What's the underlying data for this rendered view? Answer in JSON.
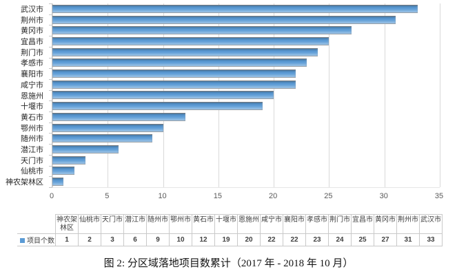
{
  "figure": {
    "caption": "图 2: 分区域落地项目数累计（2017 年 - 2018 年 10 月）"
  },
  "chart_data": {
    "type": "bar",
    "orientation": "horizontal",
    "title": "",
    "xlabel": "",
    "ylabel": "",
    "categories": [
      "武汉市",
      "荆州市",
      "黄冈市",
      "宜昌市",
      "荆门市",
      "孝感市",
      "襄阳市",
      "咸宁市",
      "恩施州",
      "十堰市",
      "黄石市",
      "鄂州市",
      "随州市",
      "潜江市",
      "天门市",
      "仙桃市",
      "神农架林区"
    ],
    "values": [
      33,
      31,
      27,
      25,
      24,
      23,
      22,
      22,
      20,
      19,
      12,
      10,
      9,
      6,
      3,
      2,
      1
    ],
    "series_name": "项目个数",
    "xlim": [
      0,
      35
    ],
    "xticks": [
      0,
      5,
      10,
      15,
      20,
      25,
      30,
      35
    ],
    "grid": true,
    "legend_position": "table-left",
    "bar_color": "#5b9bd5",
    "grid_color": "#d9d9d9",
    "axis_color": "#c6c6c6"
  },
  "table": {
    "legend_label": "项目个数",
    "columns": [
      "神农架林区",
      "仙桃市",
      "天门市",
      "潜江市",
      "随州市",
      "鄂州市",
      "黄石市",
      "十堰市",
      "恩施州",
      "咸宁市",
      "襄阳市",
      "孝感市",
      "荆门市",
      "宜昌市",
      "黄冈市",
      "荆州市",
      "武汉市"
    ],
    "values": [
      1,
      2,
      3,
      6,
      9,
      10,
      12,
      19,
      20,
      22,
      22,
      23,
      24,
      25,
      27,
      31,
      33
    ]
  }
}
